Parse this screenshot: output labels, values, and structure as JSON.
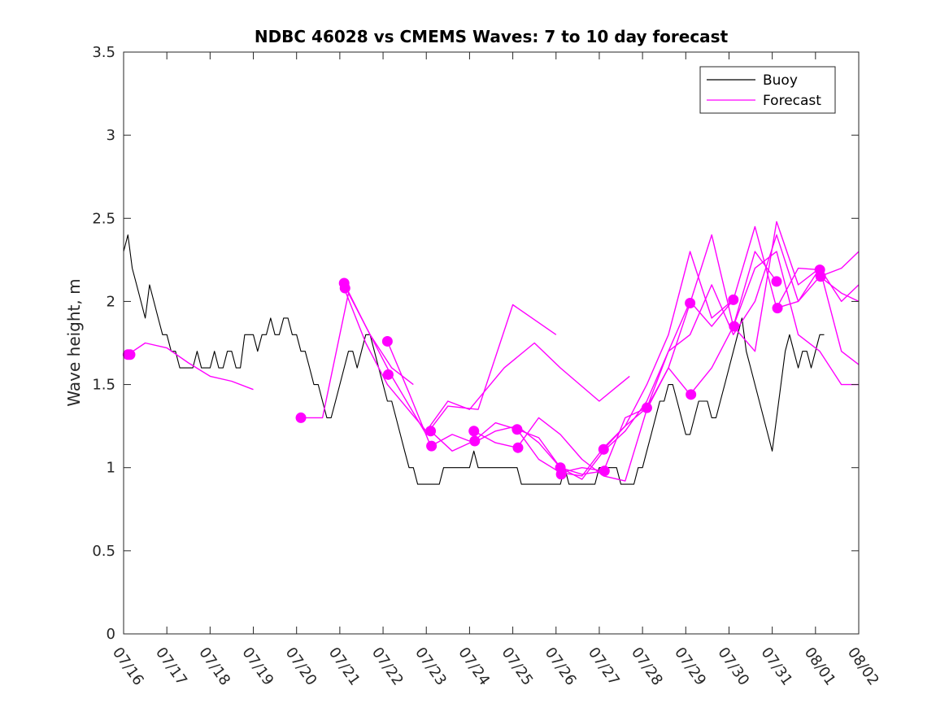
{
  "chart_data": {
    "type": "line",
    "title": "NDBC 46028 vs CMEMS Waves: 7 to 10 day forecast",
    "xlabel": "",
    "ylabel": "Wave height, m",
    "x_range": [
      "07/16",
      "08/02"
    ],
    "ylim": [
      0,
      3.5
    ],
    "x_ticks": [
      "07/16",
      "07/17",
      "07/18",
      "07/19",
      "07/20",
      "07/21",
      "07/22",
      "07/23",
      "07/24",
      "07/25",
      "07/26",
      "07/27",
      "07/28",
      "07/29",
      "07/30",
      "07/31",
      "08/01",
      "08/02"
    ],
    "y_ticks": [
      "0",
      "0.5",
      "1",
      "1.5",
      "2",
      "2.5",
      "3",
      "3.5"
    ],
    "grid": false,
    "legend": {
      "position": "top-right",
      "entries": [
        "Buoy",
        "Forecast"
      ]
    },
    "colors": {
      "buoy": "#000000",
      "forecast": "#ff00ff"
    },
    "series": [
      {
        "name": "Buoy",
        "color": "#000000",
        "x": [
          0.0,
          0.1,
          0.2,
          0.3,
          0.4,
          0.5,
          0.6,
          0.7,
          0.8,
          0.9,
          1.0,
          1.1,
          1.2,
          1.3,
          1.4,
          1.5,
          1.6,
          1.7,
          1.8,
          1.9,
          2.0,
          2.1,
          2.2,
          2.3,
          2.4,
          2.5,
          2.6,
          2.7,
          2.8,
          2.9,
          3.0,
          3.1,
          3.2,
          3.3,
          3.4,
          3.5,
          3.6,
          3.7,
          3.8,
          3.9,
          4.0,
          4.1,
          4.2,
          4.3,
          4.4,
          4.5,
          4.6,
          4.7,
          4.8,
          4.9,
          5.0,
          5.1,
          5.2,
          5.3,
          5.4,
          5.5,
          5.6,
          5.7,
          5.8,
          5.9,
          6.0,
          6.1,
          6.2,
          6.3,
          6.4,
          6.5,
          6.6,
          6.7,
          6.8,
          6.9,
          7.0,
          7.1,
          7.2,
          7.3,
          7.4,
          7.5,
          7.6,
          7.7,
          7.8,
          7.9,
          8.0,
          8.1,
          8.2,
          8.3,
          8.4,
          8.5,
          8.6,
          8.7,
          8.8,
          8.9,
          9.0,
          9.1,
          9.2,
          9.3,
          9.4,
          9.5,
          9.6,
          9.7,
          9.8,
          9.9,
          10.0,
          10.1,
          10.2,
          10.3,
          10.4,
          10.5,
          10.6,
          10.7,
          10.8,
          10.9,
          11.0,
          11.1,
          11.2,
          11.3,
          11.4,
          11.5,
          11.6,
          11.7,
          11.8,
          11.9,
          12.0,
          12.1,
          12.2,
          12.3,
          12.4,
          12.5,
          12.6,
          12.7,
          12.8,
          12.9,
          13.0,
          13.1,
          13.2,
          13.3,
          13.4,
          13.5,
          13.6,
          13.7,
          13.8,
          13.9,
          14.0,
          14.1,
          14.2,
          14.3,
          14.4,
          14.5,
          14.6,
          14.7,
          14.8,
          14.9,
          15.0,
          15.1,
          15.2,
          15.3,
          15.4,
          15.5,
          15.6,
          15.7,
          15.8,
          15.9,
          16.0,
          16.1,
          16.2
        ],
        "y": [
          2.3,
          2.4,
          2.2,
          2.1,
          2.0,
          1.9,
          2.1,
          2.0,
          1.9,
          1.8,
          1.8,
          1.7,
          1.7,
          1.6,
          1.6,
          1.6,
          1.6,
          1.7,
          1.6,
          1.6,
          1.6,
          1.7,
          1.6,
          1.6,
          1.7,
          1.7,
          1.6,
          1.6,
          1.8,
          1.8,
          1.8,
          1.7,
          1.8,
          1.8,
          1.9,
          1.8,
          1.8,
          1.9,
          1.9,
          1.8,
          1.8,
          1.7,
          1.7,
          1.6,
          1.5,
          1.5,
          1.4,
          1.3,
          1.3,
          1.4,
          1.5,
          1.6,
          1.7,
          1.7,
          1.6,
          1.7,
          1.8,
          1.8,
          1.7,
          1.6,
          1.5,
          1.4,
          1.4,
          1.3,
          1.2,
          1.1,
          1.0,
          1.0,
          0.9,
          0.9,
          0.9,
          0.9,
          0.9,
          0.9,
          1.0,
          1.0,
          1.0,
          1.0,
          1.0,
          1.0,
          1.0,
          1.1,
          1.0,
          1.0,
          1.0,
          1.0,
          1.0,
          1.0,
          1.0,
          1.0,
          1.0,
          1.0,
          0.9,
          0.9,
          0.9,
          0.9,
          0.9,
          0.9,
          0.9,
          0.9,
          0.9,
          0.9,
          1.0,
          0.9,
          0.9,
          0.9,
          0.9,
          0.9,
          0.9,
          0.9,
          1.0,
          1.0,
          1.0,
          1.0,
          1.0,
          0.9,
          0.9,
          0.9,
          0.9,
          1.0,
          1.0,
          1.1,
          1.2,
          1.3,
          1.4,
          1.4,
          1.5,
          1.5,
          1.4,
          1.3,
          1.2,
          1.2,
          1.3,
          1.4,
          1.4,
          1.4,
          1.3,
          1.3,
          1.4,
          1.5,
          1.6,
          1.7,
          1.8,
          1.9,
          1.7,
          1.6,
          1.5,
          1.4,
          1.3,
          1.2,
          1.1,
          1.3,
          1.5,
          1.7,
          1.8,
          1.7,
          1.6,
          1.7,
          1.7,
          1.6,
          1.7,
          1.8,
          1.8
        ]
      },
      {
        "name": "Forecast",
        "color": "#ff00ff",
        "x": [
          0.1,
          0.5,
          1.0,
          1.5,
          2.0,
          2.5,
          3.0
        ],
        "y": [
          1.68,
          1.75,
          1.72,
          1.63,
          1.55,
          1.52,
          1.47
        ]
      },
      {
        "color": "#ff00ff",
        "x": [
          4.1,
          4.6,
          5.2,
          5.7,
          6.2,
          6.7
        ],
        "y": [
          1.3,
          1.3,
          2.05,
          1.8,
          1.6,
          1.5
        ]
      },
      {
        "color": "#ff00ff",
        "x": [
          5.1,
          5.6,
          6.2,
          7.0,
          7.5,
          8.2,
          9.0,
          10.0
        ],
        "y": [
          2.11,
          1.85,
          1.55,
          1.2,
          1.37,
          1.35,
          1.98,
          1.8
        ]
      },
      {
        "color": "#ff00ff",
        "x": [
          5.1,
          5.6,
          6.1,
          7.0,
          7.5,
          8.0,
          8.8,
          9.5,
          10.1,
          11.0,
          11.7
        ],
        "y": [
          2.08,
          1.75,
          1.5,
          1.22,
          1.4,
          1.35,
          1.6,
          1.75,
          1.6,
          1.4,
          1.55
        ]
      },
      {
        "color": "#ff00ff",
        "x": [
          6.1,
          6.6,
          7.1,
          7.6,
          8.1,
          8.6,
          9.1,
          9.6,
          10.1,
          10.6,
          11.1
        ],
        "y": [
          1.76,
          1.45,
          1.13,
          1.2,
          1.15,
          1.22,
          1.25,
          1.15,
          1.0,
          0.96,
          0.98
        ]
      },
      {
        "color": "#ff00ff",
        "x": [
          7.1,
          7.6,
          8.1,
          8.6,
          9.1,
          9.6,
          10.1,
          10.6,
          11.1,
          11.6,
          12.1
        ],
        "y": [
          1.22,
          1.1,
          1.16,
          1.27,
          1.23,
          1.05,
          0.97,
          0.95,
          1.12,
          1.25,
          1.36
        ]
      },
      {
        "color": "#ff00ff",
        "x": [
          8.1,
          8.6,
          9.1,
          9.6,
          10.1,
          10.6,
          11.1,
          11.6,
          12.1,
          12.6,
          13.1
        ],
        "y": [
          1.22,
          1.15,
          1.12,
          1.3,
          1.2,
          1.05,
          0.95,
          0.92,
          1.35,
          1.6,
          1.44
        ]
      },
      {
        "color": "#ff00ff",
        "x": [
          9.1,
          9.6,
          10.1,
          10.6,
          11.1,
          11.6,
          12.1,
          12.6,
          13.1,
          13.6,
          14.1
        ],
        "y": [
          1.23,
          1.18,
          1.0,
          0.93,
          1.1,
          1.22,
          1.4,
          1.7,
          2.0,
          1.85,
          2.01
        ]
      },
      {
        "color": "#ff00ff",
        "x": [
          10.1,
          10.6,
          11.1,
          11.6,
          12.1,
          12.6,
          13.1,
          13.6,
          14.1,
          14.6,
          15.1
        ],
        "y": [
          0.97,
          1.0,
          0.98,
          1.3,
          1.36,
          1.6,
          1.99,
          2.4,
          1.85,
          2.3,
          2.12
        ]
      },
      {
        "color": "#ff00ff",
        "x": [
          11.1,
          11.6,
          12.1,
          12.6,
          13.1,
          13.6,
          14.1,
          14.6,
          15.1,
          15.6,
          16.1
        ],
        "y": [
          1.11,
          1.25,
          1.5,
          1.8,
          2.3,
          1.9,
          2.01,
          2.45,
          1.96,
          2.2,
          2.19
        ]
      },
      {
        "color": "#ff00ff",
        "x": [
          12.1,
          12.6,
          13.1,
          13.6,
          14.1,
          14.6,
          15.1,
          15.6,
          16.1,
          16.6,
          17.0
        ],
        "y": [
          1.36,
          1.7,
          1.8,
          2.1,
          1.8,
          2.0,
          2.4,
          2.0,
          2.15,
          2.2,
          2.3
        ]
      },
      {
        "color": "#ff00ff",
        "x": [
          13.1,
          13.6,
          14.1,
          14.6,
          15.1,
          15.6,
          16.1,
          16.6,
          17.0
        ],
        "y": [
          1.44,
          1.6,
          1.85,
          1.7,
          2.48,
          2.1,
          2.2,
          1.7,
          1.62
        ]
      },
      {
        "color": "#ff00ff",
        "x": [
          14.1,
          14.6,
          15.1,
          15.6,
          16.1,
          16.6,
          17.0
        ],
        "y": [
          1.85,
          2.2,
          2.3,
          1.8,
          1.7,
          1.5,
          1.5
        ]
      },
      {
        "color": "#ff00ff",
        "x": [
          15.1,
          15.6,
          16.1,
          16.6,
          17.0
        ],
        "y": [
          1.96,
          2.0,
          2.2,
          2.0,
          2.1
        ]
      },
      {
        "color": "#ff00ff",
        "x": [
          16.1,
          16.6,
          17.0
        ],
        "y": [
          2.15,
          2.05,
          2.0
        ]
      }
    ],
    "markers": {
      "color": "#ff00ff",
      "x": [
        0.1,
        0.15,
        4.1,
        5.1,
        5.12,
        6.1,
        6.12,
        7.1,
        7.12,
        8.1,
        8.12,
        9.1,
        9.12,
        10.1,
        10.12,
        11.1,
        11.12,
        12.1,
        13.1,
        13.12,
        14.1,
        14.12,
        15.1,
        15.12,
        16.1,
        16.12
      ],
      "y": [
        1.68,
        1.68,
        1.3,
        2.11,
        2.08,
        1.76,
        1.56,
        1.22,
        1.13,
        1.22,
        1.16,
        1.23,
        1.12,
        1.0,
        0.96,
        1.11,
        0.98,
        1.36,
        1.99,
        1.44,
        2.01,
        1.85,
        2.12,
        1.96,
        2.19,
        2.15
      ]
    }
  }
}
